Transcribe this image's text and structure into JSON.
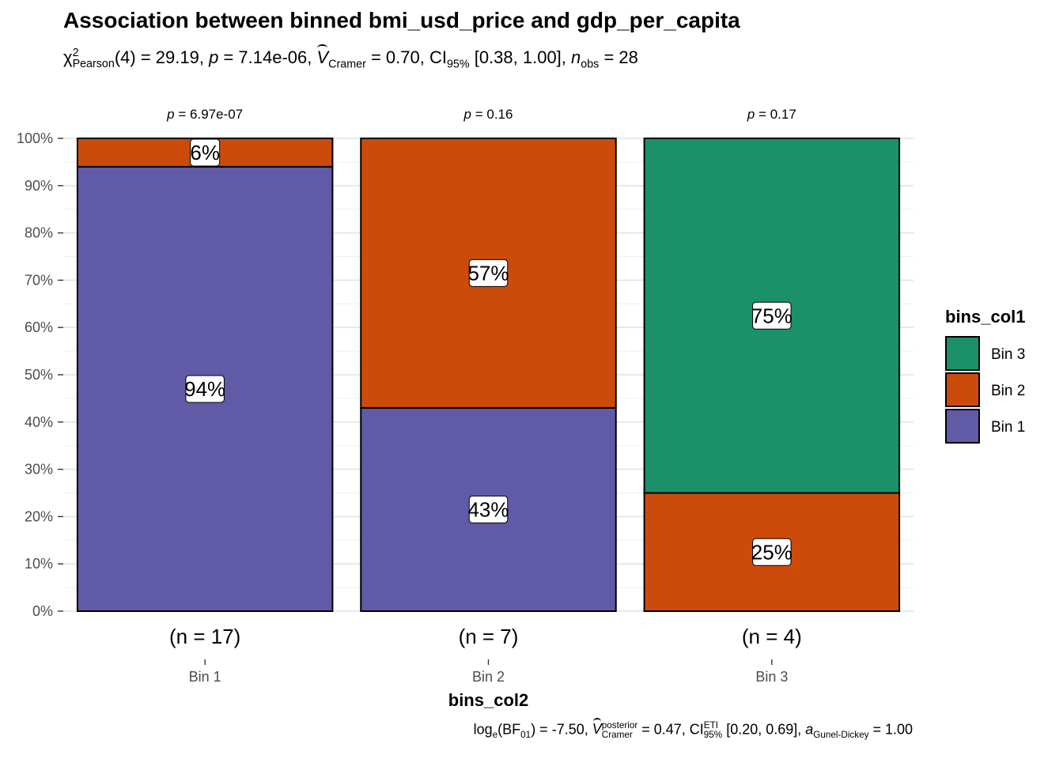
{
  "chart_data": {
    "type": "bar",
    "stacked": true,
    "percent": true,
    "title": "Association between binned bmi_usd_price and gdp_per_capita",
    "subtitle": {
      "chi_label": "χ",
      "chi_sup": "2",
      "chi_sub": "Pearson",
      "df": "(4) = 29.19, ",
      "p_label": "p",
      "p_value": " = 7.14e-06, ",
      "v_label": "V",
      "v_sub": "Cramer",
      "v_value": " = 0.70, CI",
      "ci_sub": "95%",
      "ci_value": " [0.38, 1.00], ",
      "n_label": "n",
      "n_sub": "obs",
      "n_value": " = 28"
    },
    "caption": {
      "log_label": "log",
      "log_sub": "e",
      "bf_open": "(BF",
      "bf_sub": "01",
      "bf_value": ") = -7.50, ",
      "v_label": "V",
      "v_sup": "posterior",
      "v_sub": "Cramer",
      "v_value": " = 0.47, CI",
      "ci_sup": "ETI",
      "ci_sub": "95%",
      "ci_value": " [0.20, 0.69], ",
      "a_label": "a",
      "a_sub": "Gunel-Dickey",
      "a_value": " = 1.00"
    },
    "xlabel": "bins_col2",
    "ylabel": "",
    "categories": [
      "Bin 1",
      "Bin 2",
      "Bin 3"
    ],
    "counts": [
      "(n = 17)",
      "(n = 7)",
      "(n = 4)"
    ],
    "p_values": [
      "6.97e-07",
      "0.16",
      "0.17"
    ],
    "p_prefix": "p",
    "p_eq": " = ",
    "yticks": [
      "0%",
      "10%",
      "20%",
      "30%",
      "40%",
      "50%",
      "60%",
      "70%",
      "80%",
      "90%",
      "100%"
    ],
    "ylim": [
      0,
      100
    ],
    "legend": {
      "title": "bins_col1",
      "position": "right",
      "entries": [
        {
          "name": "Bin 3",
          "color": "#1b9169"
        },
        {
          "name": "Bin 2",
          "color": "#cc4b0b"
        },
        {
          "name": "Bin 1",
          "color": "#615aa6"
        }
      ]
    },
    "series": [
      {
        "name": "Bin 1",
        "color": "#615aa6",
        "values": [
          94,
          43,
          0
        ],
        "labels": [
          "94%",
          "43%",
          ""
        ]
      },
      {
        "name": "Bin 2",
        "color": "#cc4b0b",
        "values": [
          6,
          57,
          25
        ],
        "labels": [
          "6%",
          "57%",
          "25%"
        ]
      },
      {
        "name": "Bin 3",
        "color": "#1b9169",
        "values": [
          0,
          0,
          75
        ],
        "labels": [
          "",
          "",
          "75%"
        ]
      }
    ],
    "grid": true
  }
}
